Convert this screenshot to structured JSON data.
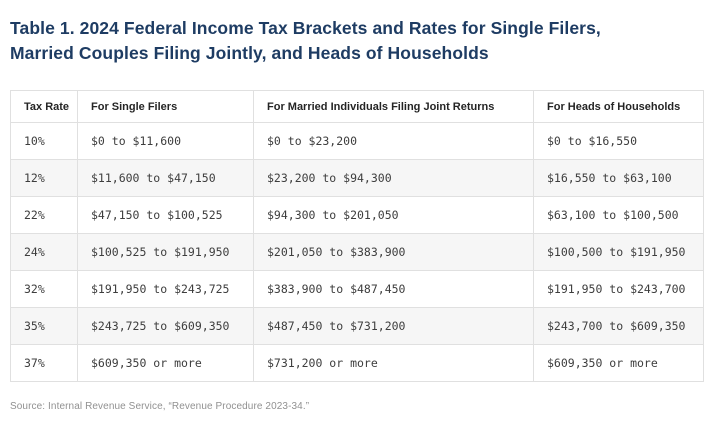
{
  "title": {
    "line1": "Table 1. 2024 Federal Income Tax Brackets and Rates for Single Filers,",
    "line2": "Married Couples Filing Jointly, and Heads of Households"
  },
  "table": {
    "columns": [
      "Tax Rate",
      "For Single Filers",
      "For Married Individuals Filing Joint Returns",
      "For Heads of Households"
    ],
    "rows": [
      {
        "rate": "10%",
        "single": "$0 to $11,600",
        "married": "$0 to $23,200",
        "hoh": "$0 to $16,550"
      },
      {
        "rate": "12%",
        "single": "$11,600 to $47,150",
        "married": "$23,200 to $94,300",
        "hoh": "$16,550 to $63,100"
      },
      {
        "rate": "22%",
        "single": "$47,150 to $100,525",
        "married": "$94,300 to $201,050",
        "hoh": "$63,100 to $100,500"
      },
      {
        "rate": "24%",
        "single": "$100,525 to $191,950",
        "married": "$201,050 to $383,900",
        "hoh": "$100,500 to $191,950"
      },
      {
        "rate": "32%",
        "single": "$191,950 to $243,725",
        "married": "$383,900 to $487,450",
        "hoh": "$191,950 to $243,700"
      },
      {
        "rate": "35%",
        "single": "$243,725 to $609,350",
        "married": "$487,450 to $731,200",
        "hoh": "$243,700 to $609,350"
      },
      {
        "rate": "37%",
        "single": "$609,350 or more",
        "married": "$731,200 or more",
        "hoh": "$609,350 or more"
      }
    ]
  },
  "source": "Source: Internal Revenue Service, “Revenue Procedure 2023-34.”",
  "colors": {
    "title_navy": "#1e3c63",
    "border_gray": "#e0e0e0",
    "stripe_gray": "#f6f6f6",
    "cell_text": "#3d3d3d",
    "source_gray": "#919191"
  }
}
